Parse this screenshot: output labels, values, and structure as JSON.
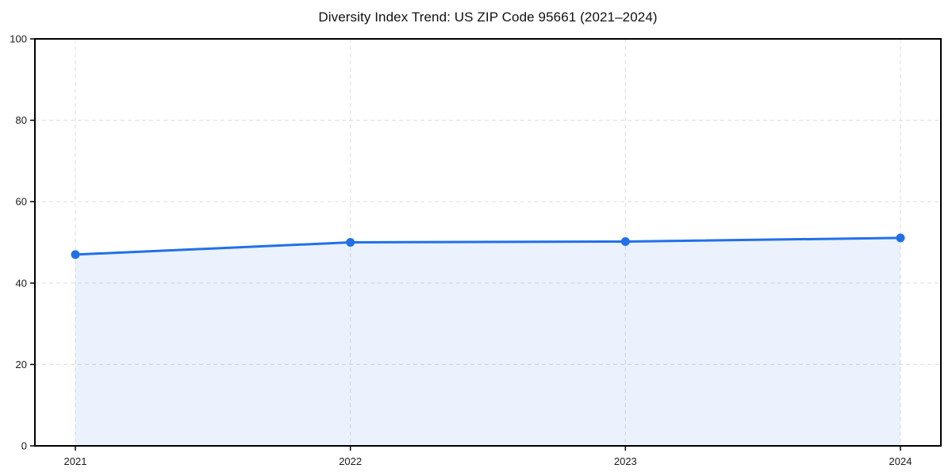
{
  "chart_data": {
    "type": "area",
    "title": "Diversity Index Trend: US ZIP Code 95661 (2021–2024)",
    "categories": [
      "2021",
      "2022",
      "2023",
      "2024"
    ],
    "series": [
      {
        "name": "Diversity Index",
        "values": [
          47.0,
          50.0,
          50.2,
          51.1
        ]
      }
    ],
    "xlabel": "",
    "ylabel": "",
    "ylim": [
      0,
      100
    ],
    "yticks": [
      0,
      20,
      40,
      60,
      80,
      100
    ],
    "grid": true,
    "grid_style": "dashed",
    "legend": "none",
    "marker": "circle",
    "colors": {
      "line": "#2170e8",
      "marker": "#2170e8",
      "fill": "rgba(33,112,232,0.09)",
      "grid": "#e2e2e2",
      "axis": "#000000",
      "tick_text": "#1a1a1a",
      "title_text": "#111111",
      "background": "#ffffff"
    }
  }
}
